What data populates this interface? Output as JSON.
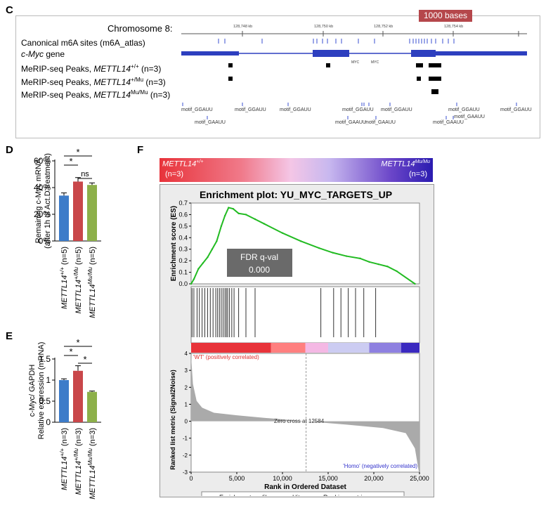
{
  "panels": {
    "C": "C",
    "D": "D",
    "E": "E",
    "F": "F"
  },
  "panelC": {
    "chromosome": "Chromosome 8:",
    "scale_label": "1000 bases",
    "coords": [
      "128,748 kb",
      "128,750 kb",
      "128,752 kb",
      "128,754 kb"
    ],
    "tracks": {
      "m6a": "Canonical m6A sites (m6A_atlas)",
      "gene_italic": "c-Myc",
      "gene_rest": " gene",
      "peaks_prefix": "MeRIP-seq Peaks, ",
      "gene_name": "METTL14",
      "sup_wt": "+/+",
      "sup_het": "+/Mu",
      "sup_homo": "Mu/Mu",
      "n": " (n=3)"
    },
    "gene_sub_labels": [
      "MYC",
      "MYC"
    ],
    "motifs_row1": [
      "motif_GGAUU",
      "motif_GGAUU",
      "motif_GGAUU",
      "motif_GGAUU",
      "motif_GGAUU",
      "motif_GGAUU",
      "motif_GGAUU"
    ],
    "motifs_row2": [
      "motif_GAAUU",
      "motif_GAAUU",
      "motif_GAAUU",
      "motif_GAAUU",
      "motif_GAAUU"
    ]
  },
  "chart_data": [
    {
      "panel": "D",
      "type": "bar",
      "ylabel": [
        "Remaining c-Myc mRNA",
        "(after 1h of Act.D treatment)"
      ],
      "yticks": [
        "0%",
        "20%",
        "40%",
        "60%"
      ],
      "ylim": [
        0,
        60
      ],
      "categories": [
        "METTL14+/+ (n=5)",
        "METTL14+/Mu (n=5)",
        "METTL14Mu/Mu (n=5)"
      ],
      "cat_name": "METTL14",
      "cat_sups": [
        "+/+",
        "+/Mu",
        "Mu/Mu"
      ],
      "cat_ns": [
        " (n=5)",
        " (n=5)",
        " (n=5)"
      ],
      "values": [
        34,
        44.5,
        42
      ],
      "errors": [
        2,
        3,
        1.5
      ],
      "colors": [
        "#3d7cc9",
        "#c9474a",
        "#8db04a"
      ],
      "sig": [
        "*",
        "*",
        "ns"
      ]
    },
    {
      "panel": "E",
      "type": "bar",
      "ylabel": [
        "c-Myc/ GAPDH",
        "Relative expression (mRNA)"
      ],
      "yticks": [
        "0",
        "0.5",
        "1",
        "1.5"
      ],
      "ylim": [
        0,
        1.5
      ],
      "categories": [
        "METTL14+/+ (n=3)",
        "METTL14+/Mu (n=3)",
        "METTL14Mu/Mu (n=3)"
      ],
      "cat_name": "METTL14",
      "cat_sups": [
        "+/+",
        "+/Mu",
        "Mu/Mu"
      ],
      "cat_ns": [
        " (n=3)",
        " (n=3)",
        " (n=3)"
      ],
      "values": [
        1.0,
        1.22,
        0.72
      ],
      "errors": [
        0.03,
        0.12,
        0.02
      ],
      "colors": [
        "#3d7cc9",
        "#c9474a",
        "#8db04a"
      ],
      "sig": [
        "*",
        "*",
        "*"
      ]
    },
    {
      "panel": "F",
      "type": "line",
      "title": "Enrichment plot: YU_MYC_TARGETS_UP",
      "ylabel": "Enrichment score (ES)",
      "yticks": [
        "0.0",
        "0.1",
        "0.2",
        "0.3",
        "0.4",
        "0.5",
        "0.6",
        "0.7"
      ],
      "ylim": [
        0,
        0.7
      ],
      "xlabel": "Rank in Ordered Dataset",
      "xticks": [
        "0",
        "5,000",
        "10,000",
        "15,000",
        "20,000",
        "25,000"
      ],
      "xlim": [
        0,
        25000
      ],
      "es_curve": {
        "x": [
          0,
          300,
          800,
          1300,
          1800,
          2300,
          2800,
          3300,
          3700,
          4100,
          4600,
          5200,
          6000,
          7000,
          8000,
          10000,
          12000,
          14000,
          15500,
          17000,
          18500,
          19500,
          20500,
          21500,
          22500,
          24500
        ],
        "y": [
          0.0,
          0.04,
          0.13,
          0.18,
          0.23,
          0.3,
          0.37,
          0.5,
          0.59,
          0.66,
          0.65,
          0.61,
          0.6,
          0.56,
          0.52,
          0.44,
          0.37,
          0.31,
          0.27,
          0.24,
          0.22,
          0.19,
          0.17,
          0.15,
          0.11,
          0.0
        ]
      },
      "hits": [
        100,
        300,
        650,
        900,
        1200,
        1500,
        1800,
        2100,
        2400,
        2700,
        2900,
        3100,
        3300,
        3500,
        3700,
        3850,
        4000,
        4200,
        4450,
        4700,
        5200,
        6000,
        7000,
        14200,
        15600,
        16400,
        17200,
        18000,
        18900,
        20200
      ],
      "ranking_metric_ylabel": "Ranked list metric (Signal2Noise)",
      "metric_yticks": [
        "4",
        "3",
        "2",
        "1",
        "0",
        "-1",
        "-2",
        "-3"
      ],
      "zero_cross": "Zero cross at 12584",
      "pos_label": "'WT' (positively correlated)",
      "neg_label": "'Homo' (negatively correlated)",
      "fdr_label": "FDR q-val",
      "fdr_value": "0.000",
      "legend": [
        "Enrichment profile",
        "Hits",
        "Ranking metric scores"
      ],
      "header_left_name": "METTL14",
      "header_left_sup": "+/+",
      "header_left_n": "(n=3)",
      "header_right_name": "METTL14",
      "header_right_sup": "Mu/Mu",
      "header_right_n": "(n=3)",
      "colors": {
        "curve": "#22bb22",
        "hits": "#333333",
        "metric": "#aaaaaa",
        "pos": "#e03030",
        "neg": "#3333cc"
      }
    }
  ]
}
